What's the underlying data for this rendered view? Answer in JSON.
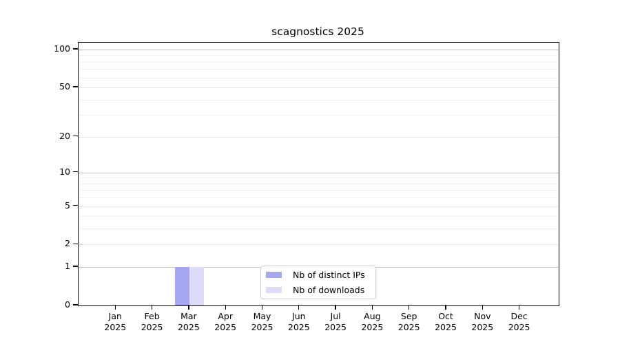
{
  "title": "scagnostics 2025",
  "chart_data": {
    "type": "bar",
    "title": "scagnostics 2025",
    "year": "2025",
    "categories": [
      "Jan",
      "Feb",
      "Mar",
      "Apr",
      "May",
      "Jun",
      "Jul",
      "Aug",
      "Sep",
      "Oct",
      "Nov",
      "Dec"
    ],
    "series": [
      {
        "name": "Nb of distinct IPs",
        "color": "#a6a6f1",
        "values": [
          0,
          0,
          1,
          0,
          0,
          0,
          0,
          0,
          0,
          0,
          0,
          0
        ]
      },
      {
        "name": "Nb of downloads",
        "color": "#dcdcf9",
        "values": [
          0,
          0,
          1,
          0,
          0,
          0,
          0,
          0,
          0,
          0,
          0,
          0
        ]
      }
    ],
    "yscale": "log1p",
    "ylim": [
      0,
      114
    ],
    "yticks": [
      0,
      1,
      2,
      5,
      10,
      20,
      50,
      100
    ],
    "yticks_minor": [
      3,
      4,
      6,
      7,
      8,
      9,
      30,
      40,
      60,
      70,
      80,
      90
    ],
    "grid": true,
    "legend_position": "lower center"
  },
  "colors": {
    "background": "#ffffff",
    "axis": "#000000",
    "grid_decade": "#c2c2c2",
    "grid_major": "#e5e5e5",
    "grid_minor": "#f3f3f3",
    "legend_border": "#cccccc",
    "text": "#000000"
  }
}
